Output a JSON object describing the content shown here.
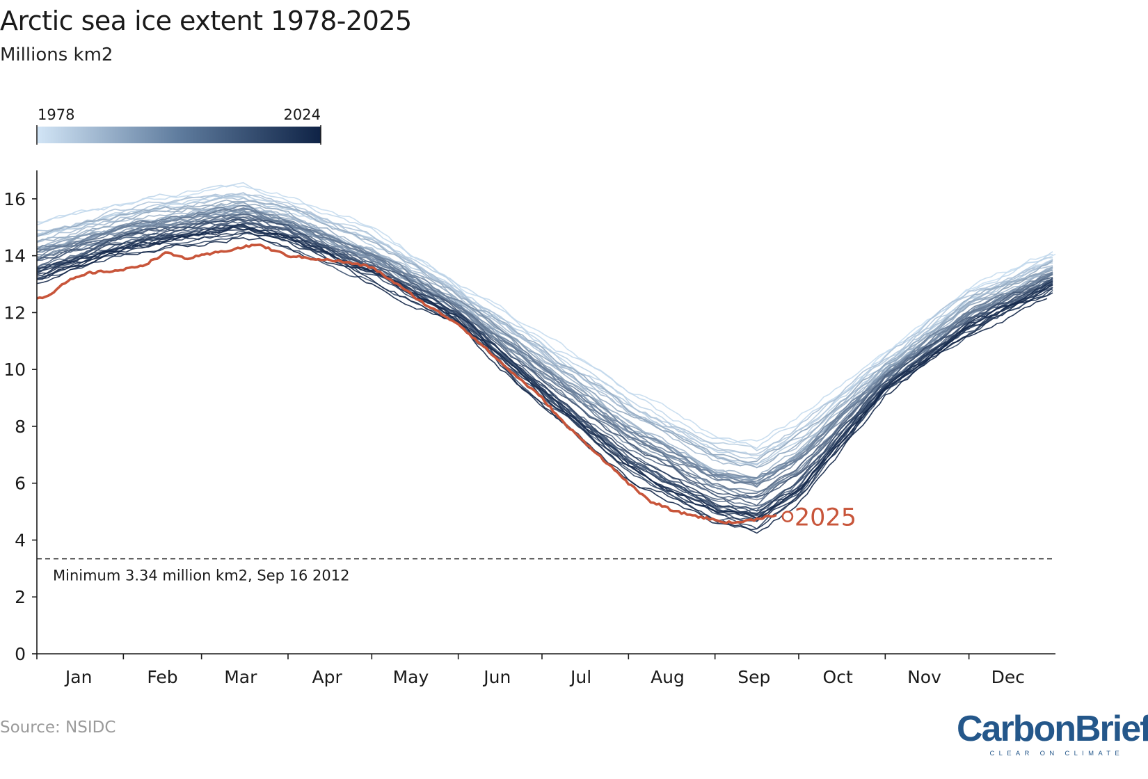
{
  "header": {
    "title": "Arctic sea ice extent 1978-2025",
    "subtitle": "Millions km2"
  },
  "footer": {
    "source": "Source: NSIDC",
    "logo_text": "CarbonBrief",
    "logo_tagline": "CLEAR ON CLIMATE"
  },
  "colors": {
    "light": "#c9dff2",
    "dark": "#0f2346",
    "highlight": "#c8553a",
    "axis": "#1a1a1a",
    "brand": "#24578a"
  },
  "chart_data": {
    "type": "line",
    "title": "Arctic sea ice extent 1978-2025",
    "subtitle": "Millions km2",
    "ylabel": "Millions km2",
    "xlabel": "",
    "ylim": [
      0,
      17
    ],
    "yticks": [
      0,
      2,
      4,
      6,
      8,
      10,
      12,
      14,
      16
    ],
    "x_unit": "day of year",
    "xlim": [
      1,
      366
    ],
    "month_labels": [
      "Jan",
      "Feb",
      "Mar",
      "Apr",
      "May",
      "Jun",
      "Jul",
      "Aug",
      "Sep",
      "Oct",
      "Nov",
      "Dec"
    ],
    "month_label_days": [
      16,
      46,
      74,
      105,
      135,
      166,
      196,
      227,
      258,
      288,
      319,
      349
    ],
    "month_boundary_days": [
      1,
      32,
      60,
      91,
      121,
      152,
      182,
      213,
      244,
      274,
      305,
      335
    ],
    "grid": false,
    "colorbar": {
      "min_label": "1978",
      "max_label": "2024",
      "min_year": 1978,
      "max_year": 2024
    },
    "historical_years": {
      "first": 1978,
      "last": 2024,
      "count": 47
    },
    "historical_envelope": {
      "days": [
        1,
        32,
        60,
        75,
        91,
        121,
        152,
        182,
        213,
        244,
        259,
        274,
        305,
        335,
        366
      ],
      "high": [
        15.2,
        15.9,
        16.4,
        16.5,
        16.1,
        15.0,
        13.0,
        11.3,
        9.4,
        7.8,
        7.6,
        8.4,
        10.6,
        12.9,
        14.2
      ],
      "low": [
        12.5,
        13.6,
        14.0,
        14.3,
        13.9,
        12.6,
        11.2,
        8.1,
        5.4,
        3.8,
        3.5,
        4.6,
        8.8,
        10.8,
        12.4
      ]
    },
    "series": [
      {
        "name": "2025",
        "days": [
          1,
          5,
          12,
          20,
          32,
          40,
          47,
          55,
          60,
          70,
          80,
          91,
          100,
          110,
          121,
          130,
          140,
          152,
          160,
          170,
          182,
          190,
          200,
          213,
          220,
          230,
          244,
          250,
          257,
          266
        ],
        "values": [
          12.5,
          12.6,
          13.1,
          13.4,
          13.5,
          13.7,
          14.1,
          13.9,
          14.0,
          14.2,
          14.4,
          14.0,
          13.9,
          13.8,
          13.6,
          13.0,
          12.3,
          11.6,
          10.9,
          10.0,
          9.0,
          8.1,
          7.2,
          6.0,
          5.4,
          5.0,
          4.7,
          4.6,
          4.7,
          4.9
        ],
        "end_label": "2025"
      }
    ],
    "reference_line": {
      "value": 3.34,
      "style": "dashed",
      "label": "Minimum 3.34 million km2, Sep 16 2012"
    }
  }
}
